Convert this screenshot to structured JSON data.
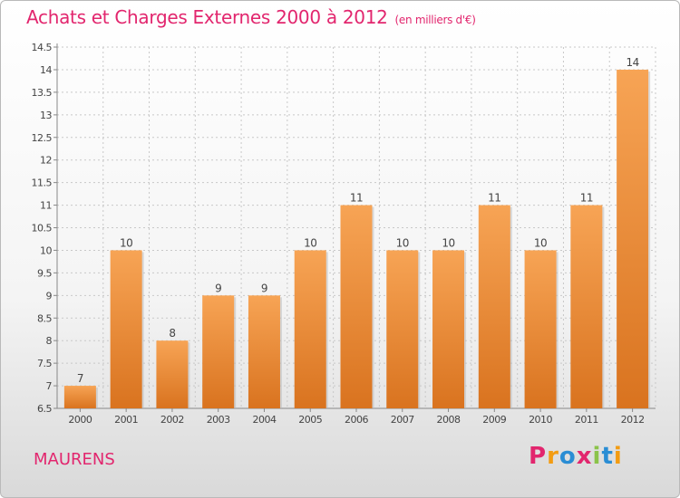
{
  "header": {
    "title": "Achats et Charges Externes 2000 à 2012",
    "unit": "(en milliers d'€)"
  },
  "footer": {
    "city": "MAURENS",
    "brand": "Proxiti",
    "brand_colors": [
      "#e2266e",
      "#f39c12",
      "#2a8dd4",
      "#e2266e",
      "#8bc34a",
      "#2a8dd4",
      "#f39c12"
    ]
  },
  "colors": {
    "bar_top": "#f7a455",
    "bar_bottom": "#d9731f",
    "label": "#444444",
    "grid": "#c8c8c8"
  },
  "chart_data": {
    "type": "bar",
    "title": "Achats et Charges Externes 2000 à 2012",
    "subtitle": "(en milliers d'€)",
    "categories": [
      "2000",
      "2001",
      "2002",
      "2003",
      "2004",
      "2005",
      "2006",
      "2007",
      "2008",
      "2009",
      "2010",
      "2011",
      "2012"
    ],
    "values": [
      7,
      10,
      8,
      9,
      9,
      10,
      11,
      10,
      10,
      11,
      10,
      11,
      14
    ],
    "data_labels": [
      "7",
      "10",
      "8",
      "9",
      "9",
      "10",
      "11",
      "10",
      "10",
      "11",
      "10",
      "11",
      "14"
    ],
    "ylim": [
      6.5,
      14.5
    ],
    "yticks": [
      6.5,
      7,
      7.5,
      8,
      8.5,
      9,
      9.5,
      10,
      10.5,
      11,
      11.5,
      12,
      12.5,
      13,
      13.5,
      14,
      14.5
    ],
    "ytick_labels": [
      "6.5",
      "7",
      "7.5",
      "8",
      "8.5",
      "9",
      "9.5",
      "10",
      "10.5",
      "11",
      "11.5",
      "12",
      "12.5",
      "13",
      "13.5",
      "14",
      "14.5"
    ],
    "grid": true
  }
}
